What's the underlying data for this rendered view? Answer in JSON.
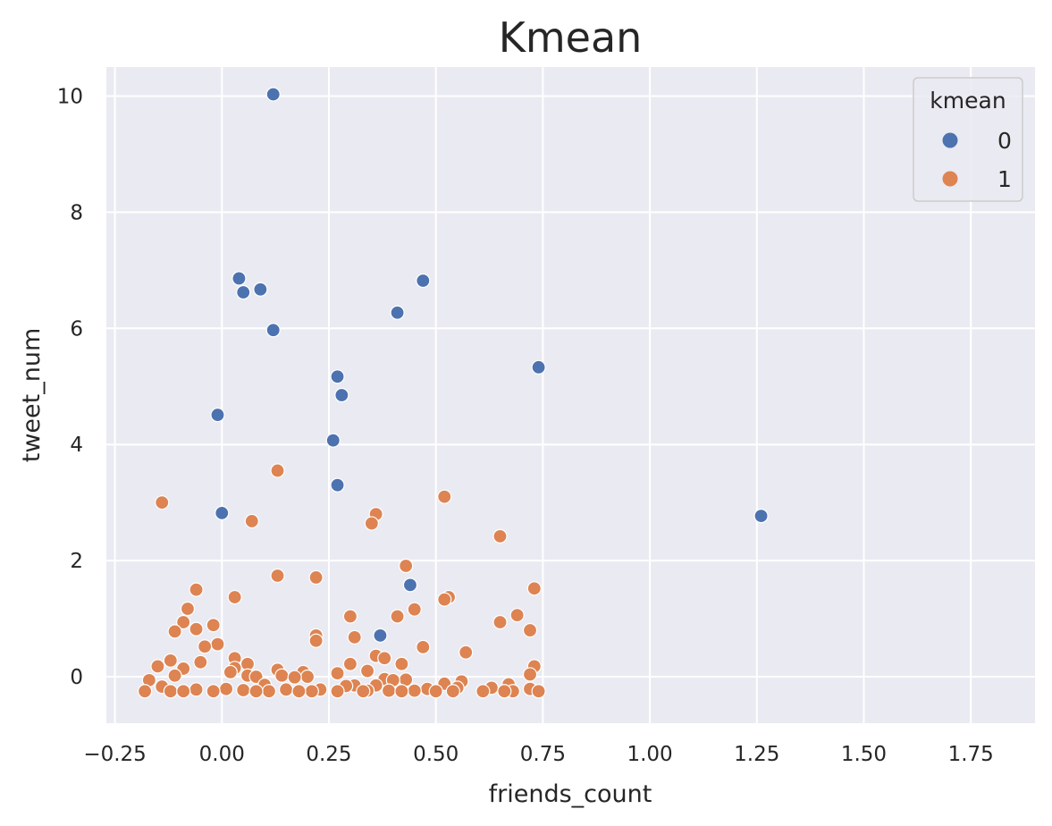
{
  "chart_data": {
    "type": "scatter",
    "title": "Kmean",
    "xlabel": "friends_count",
    "ylabel": "tweet_num",
    "xlim": [
      -0.27,
      1.9
    ],
    "ylim": [
      -0.8,
      10.5
    ],
    "xticks": [
      -0.25,
      0.0,
      0.25,
      0.5,
      0.75,
      1.0,
      1.25,
      1.5,
      1.75
    ],
    "xtick_labels": [
      "−0.25",
      "0.00",
      "0.25",
      "0.50",
      "0.75",
      "1.00",
      "1.25",
      "1.50",
      "1.75"
    ],
    "yticks": [
      0,
      2,
      4,
      6,
      8,
      10
    ],
    "ytick_labels": [
      "0",
      "2",
      "4",
      "6",
      "8",
      "10"
    ],
    "grid": true,
    "background": "#eaeaf2",
    "legend": {
      "title": "kmean",
      "position": "top-right"
    },
    "series": [
      {
        "name": "0",
        "color": "#4c72b0",
        "points": [
          [
            0.12,
            10.03
          ],
          [
            0.04,
            6.86
          ],
          [
            0.05,
            6.62
          ],
          [
            0.09,
            6.67
          ],
          [
            0.12,
            5.97
          ],
          [
            0.47,
            6.82
          ],
          [
            0.41,
            6.27
          ],
          [
            0.27,
            5.17
          ],
          [
            0.28,
            4.85
          ],
          [
            0.74,
            5.33
          ],
          [
            -0.01,
            4.51
          ],
          [
            0.26,
            4.07
          ],
          [
            0.27,
            3.3
          ],
          [
            0.0,
            2.82
          ],
          [
            1.26,
            2.77
          ],
          [
            0.44,
            1.58
          ],
          [
            0.37,
            0.71
          ]
        ]
      },
      {
        "name": "1",
        "color": "#dd8452",
        "points": [
          [
            -0.14,
            3.0
          ],
          [
            0.13,
            3.55
          ],
          [
            0.07,
            2.68
          ],
          [
            0.36,
            2.8
          ],
          [
            0.35,
            2.64
          ],
          [
            0.52,
            3.1
          ],
          [
            0.65,
            2.42
          ],
          [
            0.43,
            1.91
          ],
          [
            0.13,
            1.74
          ],
          [
            0.22,
            1.71
          ],
          [
            0.73,
            1.52
          ],
          [
            -0.06,
            1.5
          ],
          [
            0.03,
            1.37
          ],
          [
            0.53,
            1.37
          ],
          [
            0.52,
            1.33
          ],
          [
            -0.08,
            1.17
          ],
          [
            0.45,
            1.16
          ],
          [
            0.69,
            1.06
          ],
          [
            0.3,
            1.04
          ],
          [
            0.41,
            1.04
          ],
          [
            -0.09,
            0.94
          ],
          [
            0.65,
            0.94
          ],
          [
            -0.02,
            0.89
          ],
          [
            -0.06,
            0.82
          ],
          [
            0.72,
            0.8
          ],
          [
            -0.11,
            0.78
          ],
          [
            0.22,
            0.71
          ],
          [
            0.31,
            0.68
          ],
          [
            0.22,
            0.62
          ],
          [
            -0.01,
            0.56
          ],
          [
            -0.04,
            0.52
          ],
          [
            0.47,
            0.51
          ],
          [
            0.57,
            0.42
          ],
          [
            0.36,
            0.36
          ],
          [
            0.38,
            0.32
          ],
          [
            0.03,
            0.32
          ],
          [
            -0.12,
            0.28
          ],
          [
            -0.05,
            0.25
          ],
          [
            0.42,
            0.22
          ],
          [
            0.3,
            0.22
          ],
          [
            0.06,
            0.22
          ],
          [
            0.13,
            0.12
          ],
          [
            0.19,
            0.08
          ],
          [
            -0.15,
            0.18
          ],
          [
            0.73,
            0.18
          ],
          [
            0.03,
            0.15
          ],
          [
            -0.09,
            0.14
          ],
          [
            0.34,
            0.1
          ],
          [
            0.02,
            0.08
          ],
          [
            0.27,
            0.06
          ],
          [
            0.14,
            0.02
          ],
          [
            0.2,
            0.0
          ],
          [
            0.72,
            0.04
          ],
          [
            -0.11,
            0.02
          ],
          [
            0.06,
            0.02
          ],
          [
            0.08,
            0.0
          ],
          [
            0.17,
            -0.01
          ],
          [
            0.38,
            -0.04
          ],
          [
            0.43,
            -0.05
          ],
          [
            -0.17,
            -0.06
          ],
          [
            0.4,
            -0.06
          ],
          [
            0.56,
            -0.08
          ],
          [
            0.52,
            -0.12
          ],
          [
            0.67,
            -0.13
          ],
          [
            0.1,
            -0.14
          ],
          [
            0.36,
            -0.15
          ],
          [
            0.31,
            -0.15
          ],
          [
            0.29,
            -0.16
          ],
          [
            -0.14,
            -0.17
          ],
          [
            0.63,
            -0.19
          ],
          [
            0.55,
            -0.19
          ],
          [
            0.72,
            -0.21
          ],
          [
            0.48,
            -0.21
          ],
          [
            0.01,
            -0.21
          ],
          [
            -0.06,
            -0.22
          ],
          [
            0.15,
            -0.22
          ],
          [
            0.23,
            -0.22
          ],
          [
            0.05,
            -0.23
          ],
          [
            0.34,
            -0.24
          ],
          [
            0.39,
            -0.24
          ],
          [
            0.45,
            -0.24
          ],
          [
            0.54,
            -0.25
          ],
          [
            0.68,
            -0.25
          ],
          [
            -0.18,
            -0.25
          ],
          [
            0.11,
            -0.25
          ],
          [
            0.21,
            -0.25
          ],
          [
            0.5,
            -0.25
          ],
          [
            0.61,
            -0.25
          ],
          [
            0.74,
            -0.25
          ],
          [
            -0.12,
            -0.25
          ],
          [
            -0.02,
            -0.25
          ],
          [
            0.27,
            -0.25
          ],
          [
            0.33,
            -0.25
          ],
          [
            0.42,
            -0.25
          ],
          [
            0.66,
            -0.25
          ],
          [
            -0.09,
            -0.25
          ],
          [
            0.08,
            -0.25
          ],
          [
            0.18,
            -0.25
          ]
        ]
      }
    ]
  }
}
